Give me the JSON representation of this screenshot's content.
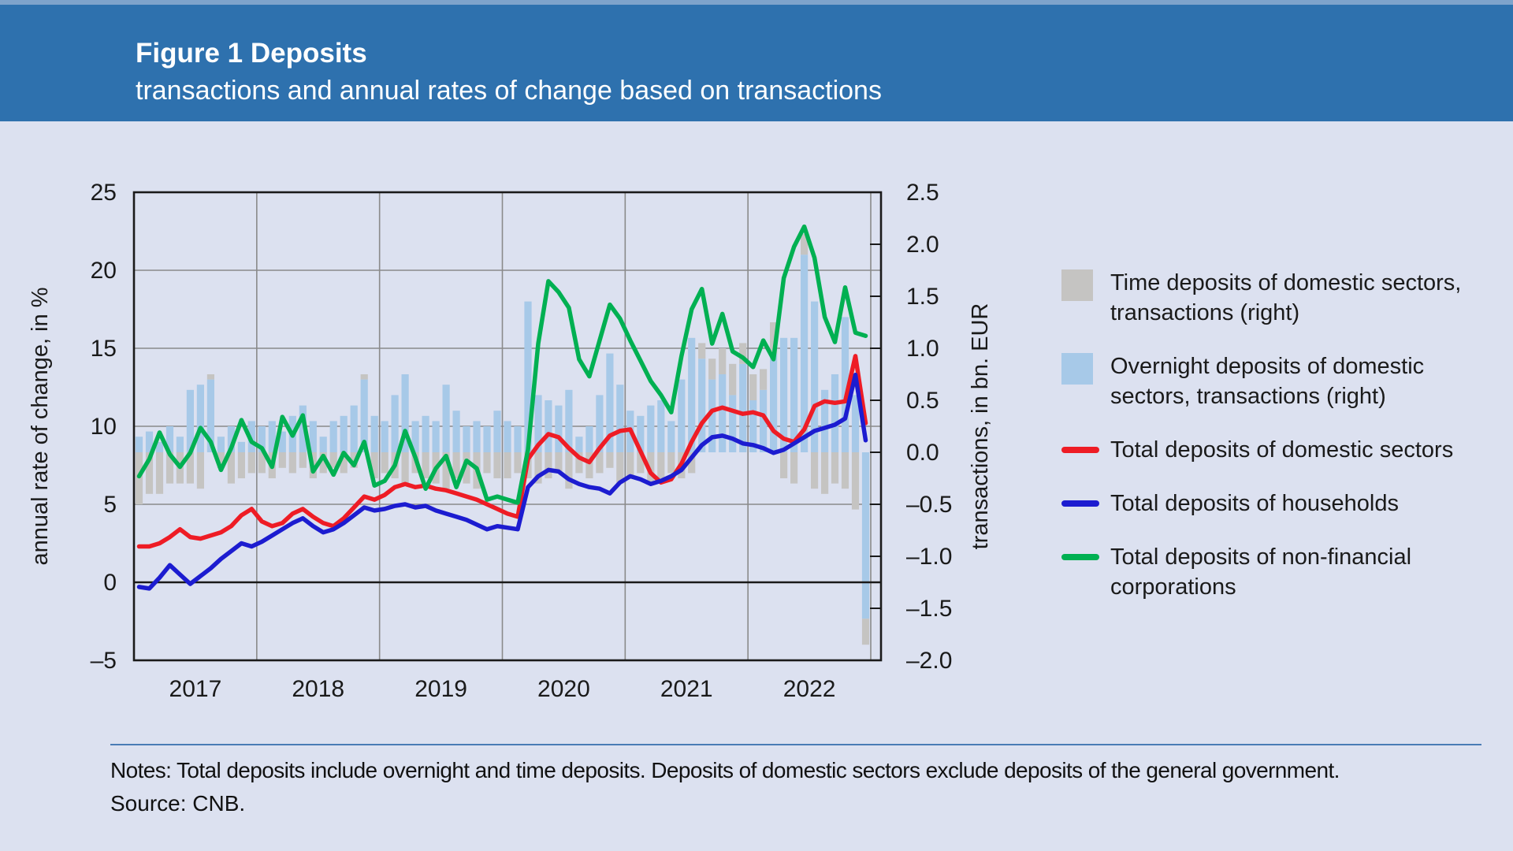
{
  "header": {
    "figure_label": "Figure 1 Deposits",
    "subtitle": "transactions and annual rates of change based on transactions"
  },
  "chart_data": {
    "type": "combo-bar-line",
    "x_unit": "month",
    "x_start": "2017-01",
    "x_end": "2022-12",
    "year_labels": [
      "2017",
      "2018",
      "2019",
      "2020",
      "2021",
      "2022"
    ],
    "left_axis": {
      "title": "annual rate of change, in %",
      "min": -5,
      "max": 25,
      "tick_values": [
        25,
        20,
        15,
        10,
        5,
        0,
        -5
      ],
      "tick_labels": [
        "25",
        "20",
        "15",
        "10",
        "5",
        "0",
        "–5"
      ]
    },
    "right_axis": {
      "title": "transactions, in bn. EUR",
      "min": -2.0,
      "max": 2.5,
      "tick_values": [
        2.5,
        2.0,
        1.5,
        1.0,
        0.5,
        0.0,
        -0.5,
        -1.0,
        -1.5,
        -2.0
      ],
      "tick_labels": [
        "2.5",
        "2.0",
        "1.5",
        "1.0",
        "0.5",
        "0.0",
        "–0.5",
        "–1.0",
        "–1.5",
        "–2.0"
      ]
    },
    "grid": {
      "horizontal_step_left_axis": 5,
      "vertical": "year-boundaries"
    },
    "legend_position": "right",
    "series": [
      {
        "name": "Overnight deposits of domestic sectors, transactions (right)",
        "type": "bar",
        "axis": "right",
        "stack": 1,
        "color": "#a7c9e8",
        "values": [
          0.15,
          0.2,
          0.1,
          0.25,
          0.15,
          0.6,
          0.65,
          0.7,
          0.15,
          0.25,
          0.1,
          0.3,
          0.25,
          0.3,
          0.2,
          0.35,
          0.45,
          0.3,
          0.15,
          0.3,
          0.35,
          0.45,
          0.7,
          0.35,
          0.3,
          0.55,
          0.75,
          0.3,
          0.35,
          0.3,
          0.65,
          0.4,
          0.25,
          0.3,
          0.25,
          0.4,
          0.3,
          0.25,
          1.45,
          0.55,
          0.5,
          0.45,
          0.6,
          0.15,
          0.25,
          0.55,
          0.95,
          0.65,
          0.4,
          0.35,
          0.45,
          0.5,
          0.3,
          0.7,
          1.1,
          0.9,
          0.7,
          0.75,
          0.55,
          0.85,
          0.5,
          0.6,
          0.95,
          1.1,
          1.1,
          1.9,
          1.45,
          0.6,
          0.75,
          1.3,
          0.55,
          -1.6
        ]
      },
      {
        "name": "Time deposits of domestic sectors, transactions (right)",
        "type": "bar",
        "axis": "right",
        "stack": 2,
        "color": "#c5c4c2",
        "values": [
          -0.5,
          -0.4,
          -0.4,
          -0.3,
          -0.3,
          -0.3,
          -0.35,
          0.05,
          -0.15,
          -0.3,
          -0.25,
          -0.2,
          -0.2,
          -0.25,
          -0.15,
          -0.2,
          -0.15,
          -0.25,
          -0.2,
          -0.15,
          -0.2,
          -0.15,
          0.05,
          -0.25,
          -0.2,
          -0.25,
          -0.3,
          -0.2,
          -0.25,
          -0.3,
          -0.35,
          -0.25,
          -0.3,
          -0.35,
          -0.2,
          -0.25,
          -0.25,
          -0.2,
          -0.25,
          -0.3,
          -0.25,
          -0.2,
          -0.35,
          -0.2,
          -0.25,
          -0.2,
          -0.15,
          -0.3,
          -0.25,
          -0.2,
          -0.3,
          -0.25,
          -0.2,
          -0.25,
          -0.2,
          0.15,
          0.2,
          0.25,
          0.3,
          0.2,
          0.25,
          0.2,
          0.3,
          -0.25,
          -0.3,
          0.2,
          -0.35,
          -0.4,
          -0.3,
          -0.35,
          -0.55,
          -0.25
        ]
      },
      {
        "name": "Total deposits of domestic sectors",
        "type": "line",
        "axis": "left",
        "color": "#ee1c25",
        "values": [
          2.3,
          2.3,
          2.5,
          2.9,
          3.4,
          2.9,
          2.8,
          3.0,
          3.2,
          3.6,
          4.3,
          4.7,
          3.9,
          3.6,
          3.8,
          4.4,
          4.7,
          4.2,
          3.8,
          3.6,
          4.1,
          4.8,
          5.5,
          5.3,
          5.6,
          6.1,
          6.3,
          6.1,
          6.2,
          6.0,
          5.9,
          5.7,
          5.5,
          5.3,
          5.0,
          4.7,
          4.4,
          4.2,
          7.9,
          8.8,
          9.5,
          9.3,
          8.6,
          8.0,
          7.7,
          8.6,
          9.4,
          9.7,
          9.8,
          8.4,
          7.0,
          6.4,
          6.6,
          7.6,
          9.0,
          10.2,
          11.0,
          11.2,
          11.0,
          10.8,
          10.9,
          10.7,
          9.7,
          9.2,
          9.0,
          9.8,
          11.3,
          11.6,
          11.5,
          11.6,
          14.5,
          10.2
        ]
      },
      {
        "name": "Total deposits of households",
        "type": "line",
        "axis": "left",
        "color": "#1c1cd0",
        "values": [
          -0.3,
          -0.4,
          0.3,
          1.1,
          0.5,
          -0.1,
          0.4,
          0.9,
          1.5,
          2.0,
          2.5,
          2.3,
          2.6,
          3.0,
          3.4,
          3.8,
          4.1,
          3.6,
          3.2,
          3.4,
          3.8,
          4.3,
          4.8,
          4.6,
          4.7,
          4.9,
          5.0,
          4.8,
          4.9,
          4.6,
          4.4,
          4.2,
          4.0,
          3.7,
          3.4,
          3.6,
          3.5,
          3.4,
          6.1,
          6.8,
          7.2,
          7.1,
          6.6,
          6.3,
          6.1,
          6.0,
          5.7,
          6.4,
          6.8,
          6.6,
          6.3,
          6.5,
          6.8,
          7.2,
          8.0,
          8.8,
          9.3,
          9.4,
          9.2,
          8.9,
          8.8,
          8.6,
          8.3,
          8.5,
          8.9,
          9.3,
          9.7,
          9.9,
          10.1,
          10.5,
          13.3,
          9.1
        ]
      },
      {
        "name": "Total deposits of non-financial corporations",
        "type": "line",
        "axis": "left",
        "color": "#00b052",
        "values": [
          6.8,
          7.9,
          9.6,
          8.2,
          7.4,
          8.3,
          9.9,
          9.0,
          7.2,
          8.6,
          10.4,
          9.0,
          8.6,
          7.4,
          10.6,
          9.4,
          10.7,
          7.1,
          8.1,
          6.9,
          8.3,
          7.5,
          9.0,
          6.2,
          6.5,
          7.5,
          9.7,
          8.0,
          6.0,
          7.3,
          8.1,
          6.1,
          7.8,
          7.3,
          5.3,
          5.5,
          5.3,
          5.1,
          8.5,
          15.3,
          19.3,
          18.6,
          17.6,
          14.3,
          13.2,
          15.5,
          17.8,
          16.9,
          15.5,
          14.2,
          12.9,
          12.0,
          10.9,
          14.5,
          17.5,
          18.8,
          15.3,
          17.2,
          14.8,
          14.4,
          13.8,
          15.5,
          14.3,
          19.5,
          21.5,
          22.8,
          20.8,
          17.0,
          15.4,
          18.9,
          16.0,
          15.8
        ]
      }
    ]
  },
  "legend": {
    "items": [
      {
        "label": "Time deposits of domestic sectors, transactions (right)",
        "swatch": "square",
        "color": "#c5c4c2"
      },
      {
        "label": "Overnight deposits of domestic sectors, transactions (right)",
        "swatch": "square",
        "color": "#a7c9e8"
      },
      {
        "label": "Total deposits of domestic sectors",
        "swatch": "line",
        "color": "#ee1c25"
      },
      {
        "label": "Total deposits of households",
        "swatch": "line",
        "color": "#1c1cd0"
      },
      {
        "label": "Total deposits of non-financial corporations",
        "swatch": "line",
        "color": "#00b052"
      }
    ]
  },
  "notes": {
    "notes_line": "Notes: Total deposits include overnight and  time deposits. Deposits of domestic sectors exclude deposits of the general government.",
    "source_line": "Source: CNB."
  }
}
